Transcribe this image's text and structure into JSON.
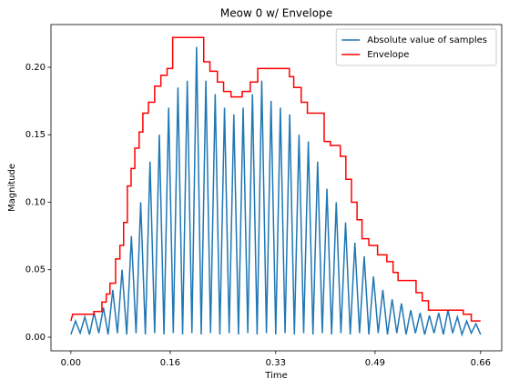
{
  "chart_data": {
    "type": "line",
    "title": "Meow 0 w/ Envelope",
    "xlabel": "Time",
    "ylabel": "Magnitude",
    "xlim": [
      -0.032,
      0.694
    ],
    "ylim": [
      -0.0101,
      0.2316
    ],
    "xticks": [
      {
        "value": 0,
        "label": "0.00"
      },
      0.16,
      0.33,
      0.49,
      0.66
    ],
    "yticks": [
      {
        "value": 0,
        "label": "0.00"
      },
      0.05,
      {
        "value": 0.1,
        "label": "0.10"
      },
      0.15,
      {
        "value": 0.2,
        "label": "0.20"
      }
    ],
    "grid": false,
    "legend": "upper right",
    "series": [
      {
        "name": "Absolute value of samples",
        "color": "#1f77b4",
        "x": [
          0,
          0.0075,
          0.015,
          0.0225,
          0.03,
          0.0375,
          0.045,
          0.0525,
          0.06,
          0.0675,
          0.075,
          0.0825,
          0.09,
          0.0975,
          0.105,
          0.1125,
          0.12,
          0.1275,
          0.135,
          0.1425,
          0.15,
          0.1575,
          0.165,
          0.1725,
          0.18,
          0.1875,
          0.195,
          0.2025,
          0.21,
          0.2175,
          0.225,
          0.2325,
          0.24,
          0.2475,
          0.255,
          0.2625,
          0.27,
          0.2775,
          0.285,
          0.2925,
          0.3,
          0.3075,
          0.315,
          0.3225,
          0.33,
          0.3375,
          0.345,
          0.3525,
          0.36,
          0.3675,
          0.375,
          0.3825,
          0.39,
          0.3975,
          0.405,
          0.4125,
          0.42,
          0.4275,
          0.435,
          0.4425,
          0.45,
          0.4575,
          0.465,
          0.4725,
          0.48,
          0.4875,
          0.495,
          0.5025,
          0.51,
          0.5175,
          0.525,
          0.5325,
          0.54,
          0.5475,
          0.555,
          0.5625,
          0.57,
          0.5775,
          0.585,
          0.5925,
          0.6,
          0.6075,
          0.615,
          0.6225,
          0.63,
          0.6375,
          0.645,
          0.6525,
          0.66
        ],
        "values": [
          0.002,
          0.012,
          0.003,
          0.015,
          0.002,
          0.018,
          0.003,
          0.022,
          0.002,
          0.035,
          0.003,
          0.05,
          0.002,
          0.075,
          0.003,
          0.1,
          0.002,
          0.13,
          0.003,
          0.15,
          0.002,
          0.17,
          0.003,
          0.185,
          0.002,
          0.19,
          0.003,
          0.215,
          0.002,
          0.19,
          0.003,
          0.18,
          0.002,
          0.17,
          0.003,
          0.165,
          0.002,
          0.17,
          0.003,
          0.18,
          0.002,
          0.19,
          0.003,
          0.175,
          0.002,
          0.17,
          0.003,
          0.165,
          0.002,
          0.15,
          0.003,
          0.145,
          0.002,
          0.13,
          0.003,
          0.11,
          0.002,
          0.1,
          0.003,
          0.085,
          0.002,
          0.07,
          0.003,
          0.06,
          0.002,
          0.045,
          0.003,
          0.035,
          0.002,
          0.028,
          0.003,
          0.025,
          0.002,
          0.02,
          0.003,
          0.018,
          0.002,
          0.016,
          0.003,
          0.018,
          0.002,
          0.02,
          0.003,
          0.015,
          0.002,
          0.012,
          0.003,
          0.01,
          0.002
        ]
      },
      {
        "name": "Envelope",
        "color": "#ff0000",
        "x": [
          0,
          0.003,
          0.037,
          0.037,
          0.05,
          0.05,
          0.057,
          0.057,
          0.063,
          0.063,
          0.072,
          0.072,
          0.079,
          0.079,
          0.085,
          0.085,
          0.091,
          0.091,
          0.097,
          0.097,
          0.103,
          0.103,
          0.11,
          0.11,
          0.116,
          0.116,
          0.125,
          0.125,
          0.135,
          0.135,
          0.145,
          0.145,
          0.155,
          0.155,
          0.164,
          0.164,
          0.214,
          0.214,
          0.224,
          0.224,
          0.236,
          0.236,
          0.246,
          0.246,
          0.258,
          0.258,
          0.276,
          0.276,
          0.289,
          0.289,
          0.301,
          0.301,
          0.352,
          0.352,
          0.359,
          0.359,
          0.371,
          0.371,
          0.381,
          0.381,
          0.408,
          0.408,
          0.418,
          0.418,
          0.434,
          0.434,
          0.443,
          0.443,
          0.452,
          0.452,
          0.461,
          0.461,
          0.469,
          0.469,
          0.48,
          0.48,
          0.494,
          0.494,
          0.509,
          0.509,
          0.519,
          0.519,
          0.527,
          0.527,
          0.556,
          0.556,
          0.566,
          0.566,
          0.576,
          0.576,
          0.632,
          0.632,
          0.645,
          0.645,
          0.66
        ],
        "values": [
          0.012,
          0.017,
          0.017,
          0.019,
          0.019,
          0.026,
          0.026,
          0.032,
          0.032,
          0.04,
          0.04,
          0.058,
          0.058,
          0.068,
          0.068,
          0.085,
          0.085,
          0.112,
          0.112,
          0.125,
          0.125,
          0.14,
          0.14,
          0.152,
          0.152,
          0.166,
          0.166,
          0.174,
          0.174,
          0.186,
          0.186,
          0.194,
          0.194,
          0.199,
          0.199,
          0.222,
          0.222,
          0.204,
          0.204,
          0.197,
          0.197,
          0.189,
          0.189,
          0.182,
          0.182,
          0.178,
          0.178,
          0.182,
          0.182,
          0.189,
          0.189,
          0.199,
          0.199,
          0.193,
          0.193,
          0.185,
          0.185,
          0.174,
          0.174,
          0.166,
          0.166,
          0.145,
          0.145,
          0.142,
          0.142,
          0.134,
          0.134,
          0.117,
          0.117,
          0.1,
          0.1,
          0.087,
          0.087,
          0.073,
          0.073,
          0.068,
          0.068,
          0.061,
          0.061,
          0.056,
          0.056,
          0.048,
          0.048,
          0.042,
          0.042,
          0.033,
          0.033,
          0.027,
          0.027,
          0.02,
          0.02,
          0.017,
          0.017,
          0.012,
          0.012
        ]
      }
    ]
  }
}
